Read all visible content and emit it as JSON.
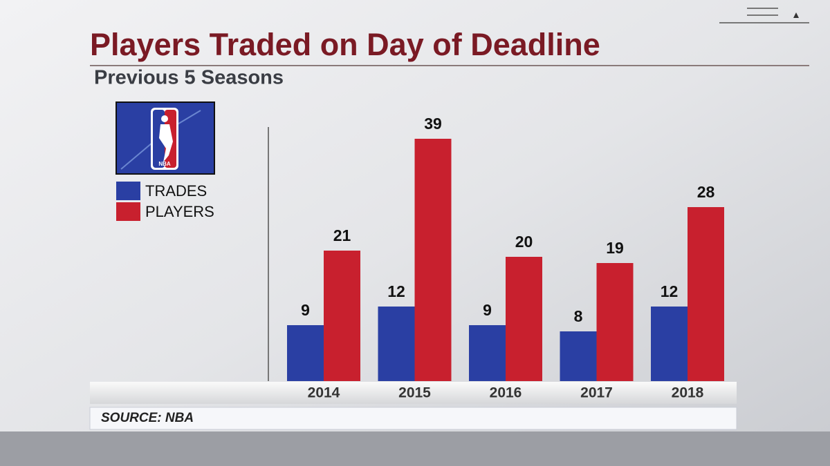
{
  "chart_data": {
    "type": "bar",
    "title": "Players Traded on Day of Deadline",
    "subtitle": "Previous 5 Seasons",
    "categories": [
      "2014",
      "2015",
      "2016",
      "2017",
      "2018"
    ],
    "series": [
      {
        "name": "TRADES",
        "color": "#2a3fa3",
        "values": [
          9,
          12,
          9,
          8,
          12
        ]
      },
      {
        "name": "PLAYERS",
        "color": "#c8202e",
        "values": [
          21,
          39,
          20,
          19,
          28
        ]
      }
    ],
    "ylim": [
      0,
      40
    ],
    "source": "SOURCE: NBA"
  }
}
